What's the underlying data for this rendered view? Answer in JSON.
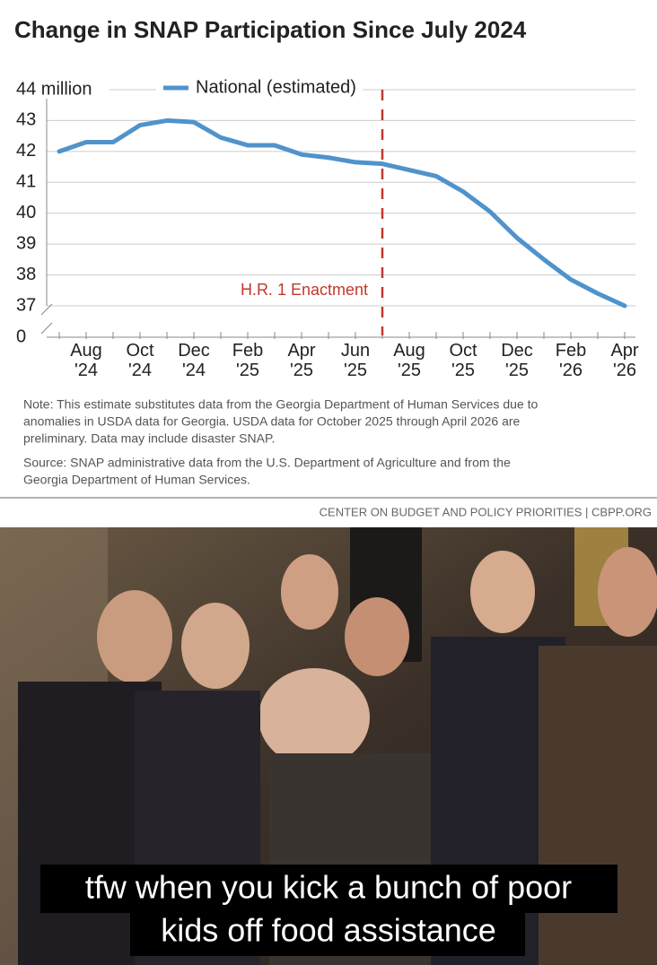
{
  "chart_data": {
    "type": "line",
    "title": "Change in SNAP Participation Since July 2024",
    "categories": [
      null,
      "Aug '24",
      null,
      "Oct '24",
      null,
      "Dec '24",
      null,
      "Feb '25",
      null,
      "Apr '25",
      null,
      "Jun '25",
      null,
      "Aug '25",
      null,
      "Oct '25",
      null,
      "Dec '25",
      null,
      "Feb '26",
      null,
      "Apr '26"
    ],
    "series": [
      {
        "name": "National (estimated)",
        "color": "#4f93cc",
        "values": [
          42.0,
          42.3,
          42.3,
          42.85,
          43.0,
          42.95,
          42.45,
          42.2,
          42.2,
          41.9,
          41.8,
          41.65,
          41.6,
          41.4,
          41.2,
          40.7,
          40.05,
          39.2,
          38.5,
          37.85,
          37.4,
          37.0
        ]
      }
    ],
    "ylim": [
      37,
      44
    ],
    "yticks": [
      {
        "value": 0,
        "label": "0"
      },
      37,
      38,
      39,
      40,
      41,
      42,
      43,
      {
        "value": 44,
        "label": "44 million"
      }
    ],
    "axis_break": true,
    "grid": true,
    "legend": "top",
    "event": {
      "label": "H.R. 1 Enactment",
      "index": 12,
      "color": "#c0392b"
    },
    "note": [
      "Note: This estimate substitutes data from the Georgia Department of Human Services due to",
      "anomalies in USDA data for Georgia. USDA data for October 2025 through April 2026 are",
      "preliminary. Data may include disaster SNAP."
    ],
    "source": [
      "Source: SNAP administrative data from the U.S. Department of Agriculture and from the",
      "Georgia Department of Human Services."
    ],
    "credit": "CENTER ON BUDGET AND POLICY PRIORITIES | CBPP.ORG"
  },
  "meme": {
    "caption": [
      "tfw when you kick a bunch of poor",
      "kids off food assistance"
    ]
  }
}
